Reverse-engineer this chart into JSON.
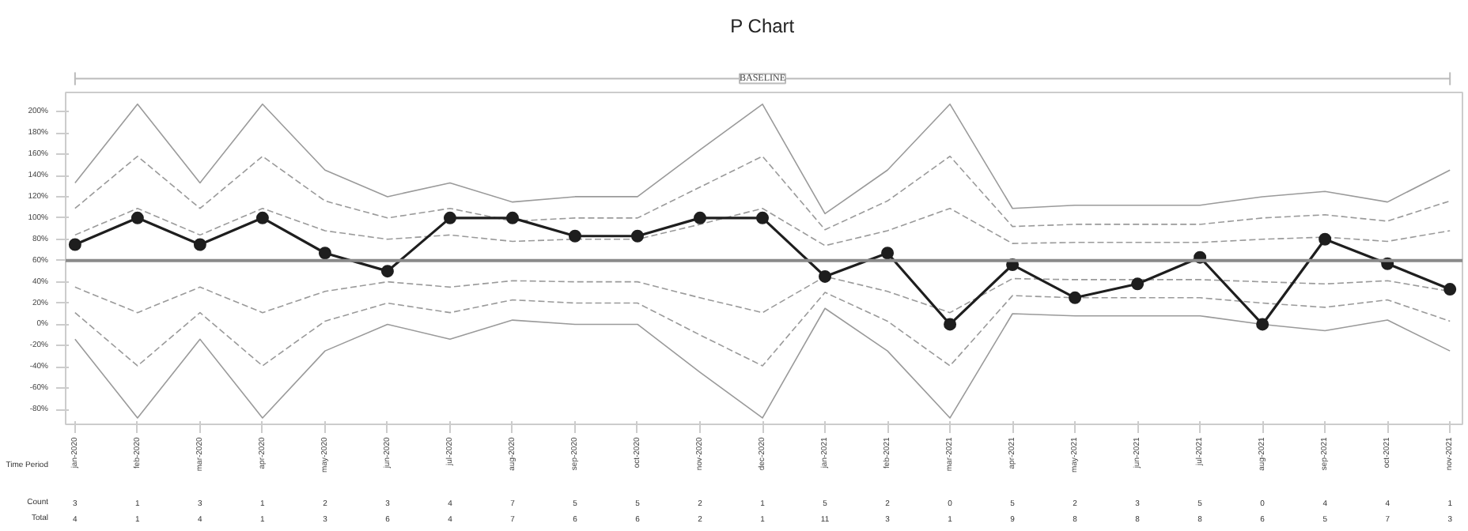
{
  "chart_data": {
    "type": "line",
    "title": "P Chart",
    "xlabel": "Time Period",
    "categories": [
      "jan-2020",
      "feb-2020",
      "mar-2020",
      "apr-2020",
      "may-2020",
      "jun-2020",
      "jul-2020",
      "aug-2020",
      "sep-2020",
      "oct-2020",
      "nov-2020",
      "dec-2020",
      "jan-2021",
      "feb-2021",
      "mar-2021",
      "apr-2021",
      "may-2021",
      "jun-2021",
      "jul-2021",
      "aug-2021",
      "sep-2021",
      "oct-2021",
      "nov-2021"
    ],
    "series": [
      {
        "color": "#9a9a9a",
        "line_style": "solid",
        "marker": "none",
        "values": [
          133,
          207,
          133,
          207,
          145,
          120,
          133,
          115,
          120,
          120,
          164,
          207,
          104,
          145,
          207,
          109,
          112,
          112,
          112,
          120,
          125,
          115,
          145
        ]
      },
      {
        "color": "#9a9a9a",
        "line_style": "dashed",
        "marker": "none",
        "values": [
          109,
          158,
          109,
          158,
          116,
          100,
          109,
          97,
          100,
          100,
          129,
          158,
          89,
          116,
          158,
          92,
          94,
          94,
          94,
          100,
          103,
          97,
          116
        ]
      },
      {
        "color": "#9a9a9a",
        "line_style": "dashed",
        "marker": "none",
        "values": [
          84,
          109,
          84,
          109,
          88,
          80,
          84,
          78,
          80,
          80,
          94,
          109,
          74,
          88,
          109,
          76,
          77,
          77,
          77,
          80,
          82,
          78,
          88
        ]
      },
      {
        "color": "#9a9a9a",
        "line_style": "dashed",
        "marker": "none",
        "values": [
          35,
          11,
          35,
          11,
          31,
          40,
          35,
          41,
          40,
          40,
          25,
          11,
          45,
          31,
          11,
          43,
          42,
          42,
          42,
          40,
          38,
          41,
          31
        ]
      },
      {
        "color": "#9a9a9a",
        "line_style": "dashed",
        "marker": "none",
        "values": [
          11,
          -39,
          11,
          -39,
          3,
          20,
          11,
          23,
          20,
          20,
          -10,
          -39,
          30,
          3,
          -39,
          27,
          25,
          25,
          25,
          20,
          16,
          23,
          3
        ]
      },
      {
        "color": "#9a9a9a",
        "line_style": "solid",
        "marker": "none",
        "values": [
          -14,
          -88,
          -14,
          -88,
          -25,
          0,
          -14,
          4,
          0,
          0,
          -45,
          -88,
          15,
          -25,
          -88,
          10,
          8,
          8,
          8,
          0,
          -6,
          4,
          -25
        ]
      },
      {
        "color": "#1e1e1e",
        "line_style": "solid",
        "marker": "circle",
        "values": [
          75,
          100,
          75,
          100,
          67,
          50,
          100,
          100,
          83,
          83,
          100,
          100,
          45,
          67,
          0,
          56,
          25,
          38,
          63,
          0,
          80,
          57,
          33
        ]
      }
    ],
    "ylim": [
      -94,
      218
    ],
    "yticks": [
      {
        "value": -80,
        "label": "-80%"
      },
      {
        "value": -60,
        "label": "-60%"
      },
      {
        "value": -40,
        "label": "-40%"
      },
      {
        "value": -20,
        "label": "-20%"
      },
      {
        "value": 0,
        "label": "0%"
      },
      {
        "value": 20,
        "label": "20%"
      },
      {
        "value": 40,
        "label": "40%"
      },
      {
        "value": 60,
        "label": "60%"
      },
      {
        "value": 80,
        "label": "80%"
      },
      {
        "value": 100,
        "label": "100%"
      },
      {
        "value": 120,
        "label": "120%"
      },
      {
        "value": 140,
        "label": "140%"
      },
      {
        "value": 160,
        "label": "160%"
      },
      {
        "value": 180,
        "label": "180%"
      },
      {
        "value": 200,
        "label": "200%"
      }
    ],
    "grid": false,
    "ref_lines": [
      {
        "axis": "y",
        "value": 60,
        "color": "#8a8a8a"
      }
    ],
    "annotations": [
      "BASELINE",
      "Count",
      "3",
      "1",
      "3",
      "1",
      "2",
      "3",
      "4",
      "7",
      "5",
      "5",
      "2",
      "1",
      "5",
      "2",
      "0",
      "5",
      "2",
      "3",
      "5",
      "0",
      "4",
      "4",
      "1",
      "Total",
      "4",
      "1",
      "4",
      "1",
      "3",
      "6",
      "4",
      "7",
      "6",
      "6",
      "2",
      "1",
      "11",
      "3",
      "1",
      "9",
      "8",
      "8",
      "8",
      "6",
      "5",
      "7",
      "3"
    ]
  }
}
